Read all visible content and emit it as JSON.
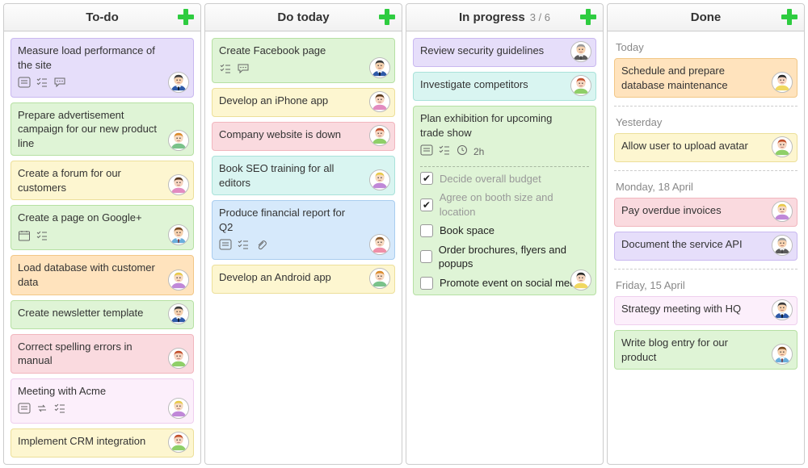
{
  "avatars": {
    "m1": {
      "skin": "#f6d2b0",
      "hair": "#3b3b3b",
      "shirt": "#2e5aa8",
      "collar": "#ffffff",
      "tie": "#000000"
    },
    "f1": {
      "skin": "#f7d9c0",
      "hair": "#d98a2b",
      "shirt": "#7ac28a"
    },
    "f2": {
      "skin": "#f7d5c0",
      "hair": "#5b3a1e",
      "shirt": "#e28bc0"
    },
    "m2": {
      "skin": "#f6d2b0",
      "hair": "#7a4a20",
      "shirt": "#6aaedb",
      "collar": "#ffffff",
      "tie": "#7a2020"
    },
    "f3": {
      "skin": "#f7d9c0",
      "hair": "#e7c94a",
      "shirt": "#c088d8"
    },
    "f4": {
      "skin": "#f7d5c0",
      "hair": "#c1502c",
      "shirt": "#8fcf68"
    },
    "m3": {
      "skin": "#f6d2b0",
      "hair": "#9a9a9a",
      "shirt": "#5b5b5b",
      "collar": "#ffffff",
      "tie": "#3a3a3a"
    },
    "f5": {
      "skin": "#f7d9c0",
      "hair": "#8a5a2a",
      "shirt": "#ef8fa8"
    },
    "f6": {
      "skin": "#f7d5c0",
      "hair": "#2a2a2a",
      "shirt": "#f0d860"
    }
  },
  "colors": {
    "purple": {
      "bg": "#e6defa",
      "border": "#c9b8f0"
    },
    "green": {
      "bg": "#dff4d6",
      "border": "#b6e0a3"
    },
    "yellow": {
      "bg": "#fdf6d0",
      "border": "#ecdf9a"
    },
    "orange": {
      "bg": "#ffe3bd",
      "border": "#f2c787"
    },
    "pink": {
      "bg": "#fadadf",
      "border": "#f1b6be"
    },
    "pinkLt": {
      "bg": "#fceffb",
      "border": "#efcfee"
    },
    "mint": {
      "bg": "#d9f5f1",
      "border": "#a9e2da"
    },
    "blue": {
      "bg": "#d6e9fb",
      "border": "#a9cdef"
    }
  },
  "columns": [
    {
      "title": "To-do",
      "count": "",
      "cards": [
        {
          "title": "Measure load performance of the site",
          "color": "purple",
          "avatar": "m1",
          "icons": [
            "note",
            "tasks",
            "comment"
          ]
        },
        {
          "title": "Prepare advertisement campaign for our new product line",
          "color": "green",
          "avatar": "f1"
        },
        {
          "title": "Create a forum for our customers",
          "color": "yellow",
          "avatar": "f2"
        },
        {
          "title": "Create a page on Google+",
          "color": "green",
          "avatar": "m2",
          "icons": [
            "calendar",
            "tasks"
          ]
        },
        {
          "title": "Load database with customer data",
          "color": "orange",
          "avatar": "f3"
        },
        {
          "title": "Create newsletter template",
          "color": "green",
          "avatar": "m1"
        },
        {
          "title": "Correct spelling errors in manual",
          "color": "pink",
          "avatar": "f4"
        },
        {
          "title": "Meeting with Acme",
          "color": "pinkLt",
          "avatar": "f3",
          "icons": [
            "note",
            "repeat",
            "tasks"
          ]
        },
        {
          "title": "Implement CRM integration",
          "color": "yellow",
          "avatar": "f4"
        }
      ]
    },
    {
      "title": "Do today",
      "count": "",
      "cards": [
        {
          "title": "Create Facebook page",
          "color": "green",
          "avatar": "m1",
          "icons": [
            "tasks",
            "comment"
          ]
        },
        {
          "title": "Develop an iPhone app",
          "color": "yellow",
          "avatar": "f2"
        },
        {
          "title": "Company website is down",
          "color": "pink",
          "avatar": "f4"
        },
        {
          "title": "Book SEO training for all editors",
          "color": "mint",
          "avatar": "f3"
        },
        {
          "title": "Produce financial report for Q2",
          "color": "blue",
          "avatar": "f5",
          "icons": [
            "note",
            "tasks",
            "attach"
          ]
        },
        {
          "title": "Develop an Android app",
          "color": "yellow",
          "avatar": "f1"
        }
      ]
    },
    {
      "title": "In progress",
      "count": "3 / 6",
      "cards": [
        {
          "title": "Review security guidelines",
          "color": "purple",
          "avatar": "m3"
        },
        {
          "title": "Investigate competitors",
          "color": "mint",
          "avatar": "f4"
        },
        {
          "title": "Plan exhibition for upcoming trade show",
          "color": "green",
          "avatar": "f6",
          "icons": [
            "note",
            "tasks",
            "clock"
          ],
          "time": "2h",
          "subtasks": [
            {
              "label": "Decide overall budget",
              "done": true
            },
            {
              "label": "Agree on booth size and location",
              "done": true
            },
            {
              "label": "Book space",
              "done": false
            },
            {
              "label": "Order brochures, flyers and popups",
              "done": false
            },
            {
              "label": "Promote event on social media",
              "done": false
            }
          ]
        }
      ]
    },
    {
      "title": "Done",
      "count": "",
      "groups": [
        {
          "label": "Today",
          "cards": [
            {
              "title": "Schedule and prepare database maintenance",
              "color": "orange",
              "avatar": "f6"
            }
          ]
        },
        {
          "label": "Yesterday",
          "cards": [
            {
              "title": "Allow user to upload avatar",
              "color": "yellow",
              "avatar": "f4"
            }
          ]
        },
        {
          "label": "Monday, 18 April",
          "cards": [
            {
              "title": "Pay overdue invoices",
              "color": "pink",
              "avatar": "f3"
            },
            {
              "title": "Document the service API",
              "color": "purple",
              "avatar": "m3"
            }
          ]
        },
        {
          "label": "Friday, 15 April",
          "cards": [
            {
              "title": "Strategy meeting with HQ",
              "color": "pinkLt",
              "avatar": "m1"
            },
            {
              "title": "Write blog entry for our product",
              "color": "green",
              "avatar": "m2"
            }
          ]
        }
      ]
    }
  ]
}
